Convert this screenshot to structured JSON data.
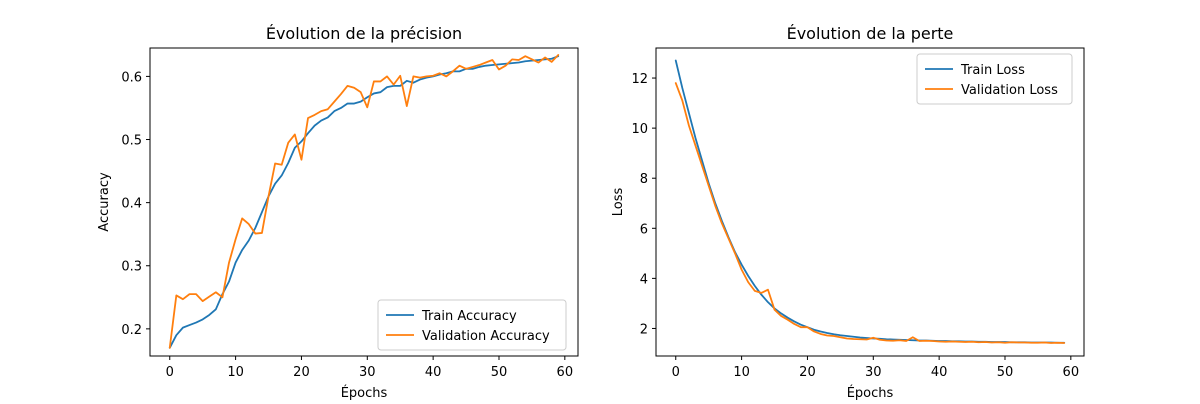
{
  "chart_data": [
    {
      "type": "line",
      "title": "Évolution de la précision",
      "xlabel": "Épochs",
      "ylabel": "Accuracy",
      "xlim": [
        -3,
        62
      ],
      "ylim": [
        0.157,
        0.645
      ],
      "xticks": [
        0,
        10,
        20,
        30,
        40,
        50,
        60
      ],
      "yticks": [
        0.2,
        0.3,
        0.4,
        0.5,
        0.6
      ],
      "ytick_decimals": 1,
      "grid": false,
      "legend_position": "lower-right",
      "series": [
        {
          "name": "Train Accuracy",
          "color": "#1f77b4",
          "x": [
            0,
            1,
            2,
            3,
            4,
            5,
            6,
            7,
            8,
            9,
            10,
            11,
            12,
            13,
            14,
            15,
            16,
            17,
            18,
            19,
            20,
            21,
            22,
            23,
            24,
            25,
            26,
            27,
            28,
            29,
            30,
            31,
            32,
            33,
            34,
            35,
            36,
            37,
            38,
            39,
            40,
            41,
            42,
            43,
            44,
            45,
            46,
            47,
            48,
            49,
            50,
            51,
            52,
            53,
            54,
            55,
            56,
            57,
            58,
            59
          ],
          "values": [
            0.17,
            0.19,
            0.202,
            0.206,
            0.21,
            0.215,
            0.222,
            0.231,
            0.255,
            0.275,
            0.305,
            0.325,
            0.34,
            0.36,
            0.385,
            0.41,
            0.43,
            0.443,
            0.463,
            0.487,
            0.497,
            0.51,
            0.522,
            0.53,
            0.535,
            0.545,
            0.55,
            0.557,
            0.557,
            0.56,
            0.567,
            0.573,
            0.575,
            0.583,
            0.585,
            0.585,
            0.593,
            0.59,
            0.595,
            0.598,
            0.6,
            0.603,
            0.605,
            0.608,
            0.608,
            0.612,
            0.612,
            0.615,
            0.617,
            0.618,
            0.619,
            0.62,
            0.621,
            0.622,
            0.624,
            0.625,
            0.626,
            0.627,
            0.628,
            0.632
          ]
        },
        {
          "name": "Validation Accuracy",
          "color": "#ff7f0e",
          "x": [
            0,
            1,
            2,
            3,
            4,
            5,
            6,
            7,
            8,
            9,
            10,
            11,
            12,
            13,
            14,
            15,
            16,
            17,
            18,
            19,
            20,
            21,
            22,
            23,
            24,
            25,
            26,
            27,
            28,
            29,
            30,
            31,
            32,
            33,
            34,
            35,
            36,
            37,
            38,
            39,
            40,
            41,
            42,
            43,
            44,
            45,
            46,
            47,
            48,
            49,
            50,
            51,
            52,
            53,
            54,
            55,
            56,
            57,
            58,
            59
          ],
          "values": [
            0.17,
            0.253,
            0.247,
            0.255,
            0.255,
            0.244,
            0.251,
            0.258,
            0.25,
            0.305,
            0.342,
            0.375,
            0.366,
            0.351,
            0.352,
            0.41,
            0.462,
            0.46,
            0.495,
            0.508,
            0.468,
            0.534,
            0.539,
            0.545,
            0.548,
            0.56,
            0.572,
            0.585,
            0.582,
            0.575,
            0.551,
            0.592,
            0.592,
            0.6,
            0.587,
            0.601,
            0.553,
            0.6,
            0.598,
            0.6,
            0.601,
            0.605,
            0.6,
            0.608,
            0.617,
            0.612,
            0.615,
            0.618,
            0.622,
            0.626,
            0.611,
            0.617,
            0.627,
            0.626,
            0.632,
            0.627,
            0.622,
            0.63,
            0.623,
            0.634
          ]
        }
      ]
    },
    {
      "type": "line",
      "title": "Évolution de la perte",
      "xlabel": "Épochs",
      "ylabel": "Loss",
      "xlim": [
        -3,
        62
      ],
      "ylim": [
        0.9,
        13.2
      ],
      "xticks": [
        0,
        10,
        20,
        30,
        40,
        50,
        60
      ],
      "yticks": [
        2,
        4,
        6,
        8,
        10,
        12
      ],
      "ytick_decimals": 0,
      "grid": false,
      "legend_position": "upper-right",
      "series": [
        {
          "name": "Train Loss",
          "color": "#1f77b4",
          "x": [
            0,
            1,
            2,
            3,
            4,
            5,
            6,
            7,
            8,
            9,
            10,
            11,
            12,
            13,
            14,
            15,
            16,
            17,
            18,
            19,
            20,
            21,
            22,
            23,
            24,
            25,
            26,
            27,
            28,
            29,
            30,
            31,
            32,
            33,
            34,
            35,
            36,
            37,
            38,
            39,
            40,
            41,
            42,
            43,
            44,
            45,
            46,
            47,
            48,
            49,
            50,
            51,
            52,
            53,
            54,
            55,
            56,
            57,
            58,
            59
          ],
          "values": [
            12.7,
            11.6,
            10.6,
            9.6,
            8.7,
            7.8,
            7.0,
            6.3,
            5.65,
            5.05,
            4.55,
            4.1,
            3.7,
            3.35,
            3.05,
            2.8,
            2.6,
            2.43,
            2.28,
            2.15,
            2.05,
            1.95,
            1.88,
            1.82,
            1.77,
            1.73,
            1.7,
            1.67,
            1.64,
            1.62,
            1.6,
            1.59,
            1.57,
            1.56,
            1.55,
            1.54,
            1.53,
            1.52,
            1.52,
            1.51,
            1.5,
            1.5,
            1.49,
            1.49,
            1.48,
            1.48,
            1.47,
            1.47,
            1.46,
            1.46,
            1.46,
            1.45,
            1.45,
            1.45,
            1.44,
            1.44,
            1.44,
            1.44,
            1.43,
            1.43
          ]
        },
        {
          "name": "Validation Loss",
          "color": "#ff7f0e",
          "x": [
            0,
            1,
            2,
            3,
            4,
            5,
            6,
            7,
            8,
            9,
            10,
            11,
            12,
            13,
            14,
            15,
            16,
            17,
            18,
            19,
            20,
            21,
            22,
            23,
            24,
            25,
            26,
            27,
            28,
            29,
            30,
            31,
            32,
            33,
            34,
            35,
            36,
            37,
            38,
            39,
            40,
            41,
            42,
            43,
            44,
            45,
            46,
            47,
            48,
            49,
            50,
            51,
            52,
            53,
            54,
            55,
            56,
            57,
            58,
            59
          ],
          "values": [
            11.8,
            11.1,
            10.1,
            9.3,
            8.5,
            7.7,
            6.9,
            6.2,
            5.6,
            5.0,
            4.35,
            3.85,
            3.5,
            3.42,
            3.55,
            2.75,
            2.5,
            2.35,
            2.18,
            2.05,
            2.05,
            1.88,
            1.78,
            1.72,
            1.7,
            1.65,
            1.6,
            1.58,
            1.57,
            1.56,
            1.63,
            1.55,
            1.52,
            1.51,
            1.53,
            1.5,
            1.65,
            1.5,
            1.51,
            1.5,
            1.48,
            1.47,
            1.48,
            1.47,
            1.46,
            1.47,
            1.45,
            1.46,
            1.44,
            1.45,
            1.43,
            1.45,
            1.44,
            1.44,
            1.43,
            1.43,
            1.44,
            1.42,
            1.43,
            1.42
          ]
        }
      ]
    }
  ]
}
